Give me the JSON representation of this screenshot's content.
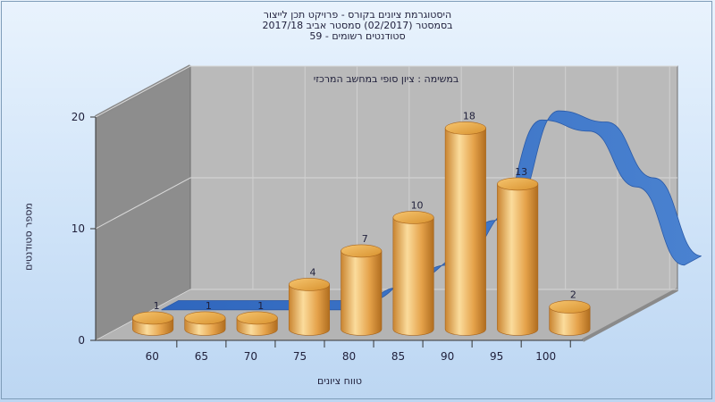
{
  "chart_data": {
    "type": "bar",
    "title_lines": [
      "היסטוגרמת ציונים בקורס - פרויקט תכן לייצור",
      "בסמסטר  (02/2017)  סמסטר אביב 2017/18",
      "סטודנטים רשומים - 59"
    ],
    "subtitle": "במשימה : ציון סופי במחשב המרכזי",
    "xlabel": "טווח ציונים",
    "ylabel": "מספר סטודנטים",
    "x_ticks": [
      "60",
      "65",
      "70",
      "75",
      "80",
      "85",
      "90",
      "95",
      "100"
    ],
    "y_ticks": [
      0,
      10,
      20
    ],
    "ylim": [
      0,
      20
    ],
    "categories": [
      "60",
      "65",
      "70",
      "75",
      "80",
      "85",
      "90",
      "95",
      "100"
    ],
    "values": [
      1,
      1,
      1,
      4,
      7,
      10,
      18,
      13,
      2
    ],
    "curve": {
      "type": "area-ribbon",
      "values": [
        0,
        0,
        0,
        0,
        0,
        2,
        4,
        8,
        17,
        16,
        11,
        4
      ]
    },
    "grid": true,
    "style": "3d-cylinders",
    "colors": {
      "bar": "#e8a94a",
      "bar_light": "#fbdc9c",
      "bar_dark": "#b77422",
      "curve": "#3c72c4",
      "wall_back": "#bababa",
      "wall_side": "#8d8d8d",
      "floor": "#b4b4b4"
    }
  }
}
